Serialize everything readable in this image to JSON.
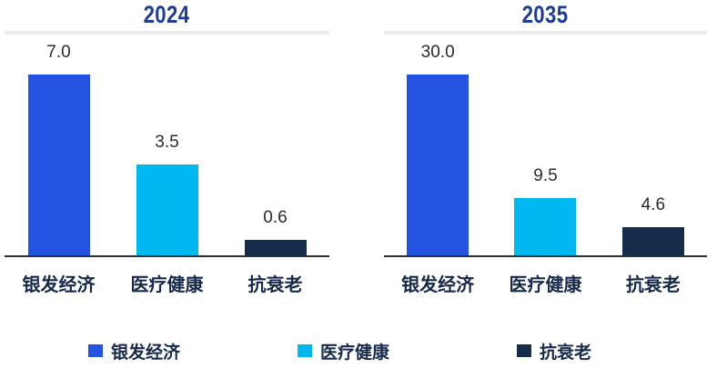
{
  "chart_data": [
    {
      "type": "bar",
      "title": "2024",
      "categories": [
        "银发经济",
        "医疗健康",
        "抗衰老"
      ],
      "values": [
        7.0,
        3.5,
        0.6
      ],
      "data_labels": [
        "7.0",
        "3.5",
        "0.6"
      ],
      "bar_colors": [
        "#2452E1",
        "#00B8F0",
        "#152C4A"
      ],
      "ylim": [
        0,
        7.0
      ],
      "xlabel": "",
      "ylabel": "",
      "grid": false,
      "legend_position": "bottom"
    },
    {
      "type": "bar",
      "title": "2035",
      "categories": [
        "银发经济",
        "医疗健康",
        "抗衰老"
      ],
      "values": [
        30.0,
        9.5,
        4.6
      ],
      "data_labels": [
        "30.0",
        "9.5",
        "4.6"
      ],
      "bar_colors": [
        "#2452E1",
        "#00B8F0",
        "#152C4A"
      ],
      "ylim": [
        0,
        30.0
      ],
      "xlabel": "",
      "ylabel": "",
      "grid": false,
      "legend_position": "bottom"
    }
  ],
  "legend": {
    "items": [
      {
        "label": "银发经济",
        "color": "#2452E1"
      },
      {
        "label": "医疗健康",
        "color": "#00B8F0"
      },
      {
        "label": "抗衰老",
        "color": "#152C4A"
      }
    ]
  },
  "colors": {
    "title_text": "#1C3D92",
    "category_text": "#16294A",
    "value_text": "#2A2A2A",
    "divider": "#EAEAEA",
    "axis_line": "#2B2F38",
    "background": "#FFFFFF"
  }
}
